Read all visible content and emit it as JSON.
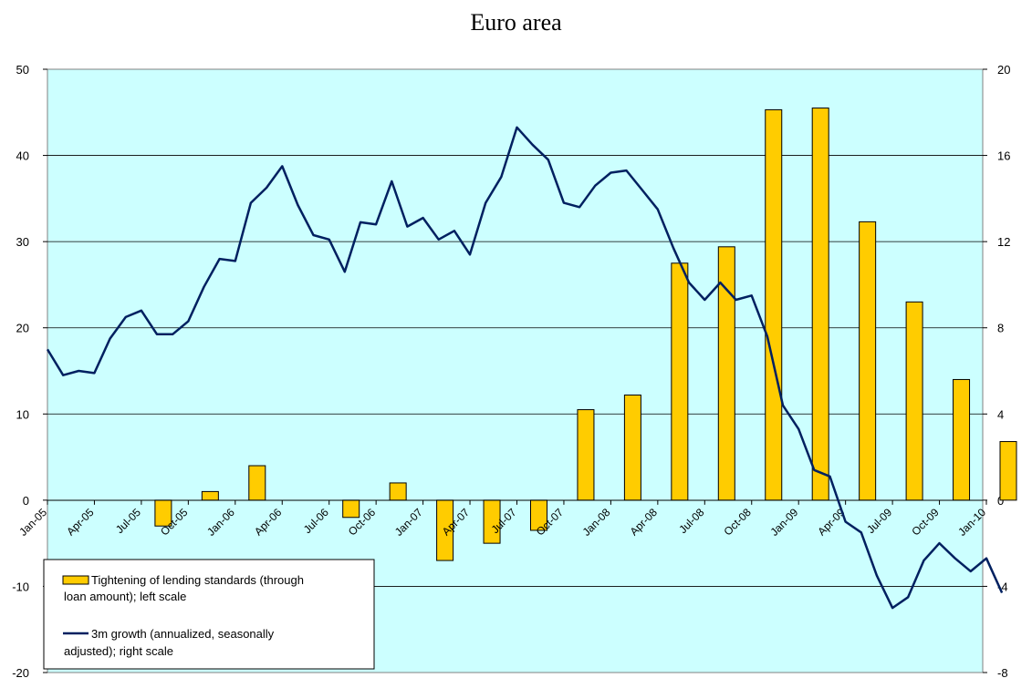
{
  "chart_data": {
    "type": "bar",
    "title": "Euro area",
    "x_ticks": [
      "Jan-05",
      "Apr-05",
      "Jul-05",
      "Oct-05",
      "Jan-06",
      "Apr-06",
      "Jul-06",
      "Oct-06",
      "Jan-07",
      "Apr-07",
      "Jul-07",
      "Oct-07",
      "Jan-08",
      "Apr-08",
      "Jul-08",
      "Oct-08",
      "Jan-09",
      "Apr-09",
      "Jul-09",
      "Oct-09",
      "Jan-10"
    ],
    "left_axis": {
      "ylim": [
        -20,
        50
      ],
      "ticks": [
        "50",
        "40",
        "30",
        "20",
        "10",
        "0",
        "-10",
        "-20"
      ]
    },
    "right_axis": {
      "ylim": [
        -8,
        20
      ],
      "ticks": [
        "20",
        "16",
        "12",
        "8",
        "4",
        "0",
        "-4",
        "-8"
      ]
    },
    "grid": true,
    "background_color": "#ccffff",
    "series": [
      {
        "name": "Tightening of lending standards (through loan amount); left scale",
        "type": "bar",
        "axis": "left",
        "color": "#ffcc00",
        "points": [
          {
            "x": "Jul-05",
            "y": -3
          },
          {
            "x": "Oct-05",
            "y": 1
          },
          {
            "x": "Jan-06",
            "y": 4
          },
          {
            "x": "Apr-06",
            "y": 0
          },
          {
            "x": "Jul-06",
            "y": -2
          },
          {
            "x": "Oct-06",
            "y": 2
          },
          {
            "x": "Jan-07",
            "y": -7
          },
          {
            "x": "Apr-07",
            "y": -5
          },
          {
            "x": "Jul-07",
            "y": -3.5
          },
          {
            "x": "Oct-07",
            "y": 10.5
          },
          {
            "x": "Jan-08",
            "y": 12.2
          },
          {
            "x": "Apr-08",
            "y": 27.5
          },
          {
            "x": "Jul-08",
            "y": 29.4
          },
          {
            "x": "Oct-08",
            "y": 45.3
          },
          {
            "x": "Jan-09",
            "y": 45.5
          },
          {
            "x": "Apr-09",
            "y": 32.3
          },
          {
            "x": "Jul-09",
            "y": 23
          },
          {
            "x": "Oct-09",
            "y": 14
          },
          {
            "x": "Jan-10",
            "y": 6.8
          }
        ]
      },
      {
        "name": "3m growth (annualized, seasonally adjusted); right scale",
        "type": "line",
        "axis": "right",
        "color": "#002060",
        "x": [
          "Jan-05",
          "Feb-05",
          "Mar-05",
          "Apr-05",
          "May-05",
          "Jun-05",
          "Jul-05",
          "Aug-05",
          "Sep-05",
          "Oct-05",
          "Nov-05",
          "Dec-05",
          "Jan-06",
          "Feb-06",
          "Mar-06",
          "Apr-06",
          "May-06",
          "Jun-06",
          "Jul-06",
          "Aug-06",
          "Sep-06",
          "Oct-06",
          "Nov-06",
          "Dec-06",
          "Jan-07",
          "Feb-07",
          "Mar-07",
          "Apr-07",
          "May-07",
          "Jun-07",
          "Jul-07",
          "Aug-07",
          "Sep-07",
          "Oct-07",
          "Nov-07",
          "Dec-07",
          "Jan-08",
          "Feb-08",
          "Mar-08",
          "Apr-08",
          "May-08",
          "Jun-08",
          "Jul-08",
          "Aug-08",
          "Sep-08",
          "Oct-08",
          "Nov-08",
          "Dec-08",
          "Jan-09",
          "Feb-09",
          "Mar-09",
          "Apr-09",
          "May-09",
          "Jun-09",
          "Jul-09",
          "Aug-09",
          "Sep-09",
          "Oct-09",
          "Nov-09",
          "Dec-09",
          "Jan-10",
          "Feb-10"
        ],
        "values": [
          7.0,
          5.8,
          6.0,
          5.9,
          7.5,
          8.5,
          8.8,
          7.7,
          7.7,
          8.3,
          9.9,
          11.2,
          11.1,
          13.8,
          14.5,
          15.5,
          13.7,
          12.3,
          12.1,
          10.6,
          12.9,
          12.8,
          14.8,
          12.7,
          13.1,
          12.1,
          12.5,
          11.4,
          13.8,
          15.0,
          17.3,
          16.5,
          15.8,
          13.8,
          13.6,
          14.6,
          15.2,
          15.3,
          14.4,
          13.5,
          11.7,
          10.1,
          9.3,
          10.1,
          9.3,
          9.5,
          7.6,
          4.4,
          3.3,
          1.4,
          1.1,
          -1.0,
          -1.5,
          -3.5,
          -5.0,
          -4.5,
          -2.8,
          -2.0,
          -2.7,
          -3.3,
          -2.7,
          -4.3
        ]
      }
    ],
    "legend_position": "bottom-left"
  }
}
